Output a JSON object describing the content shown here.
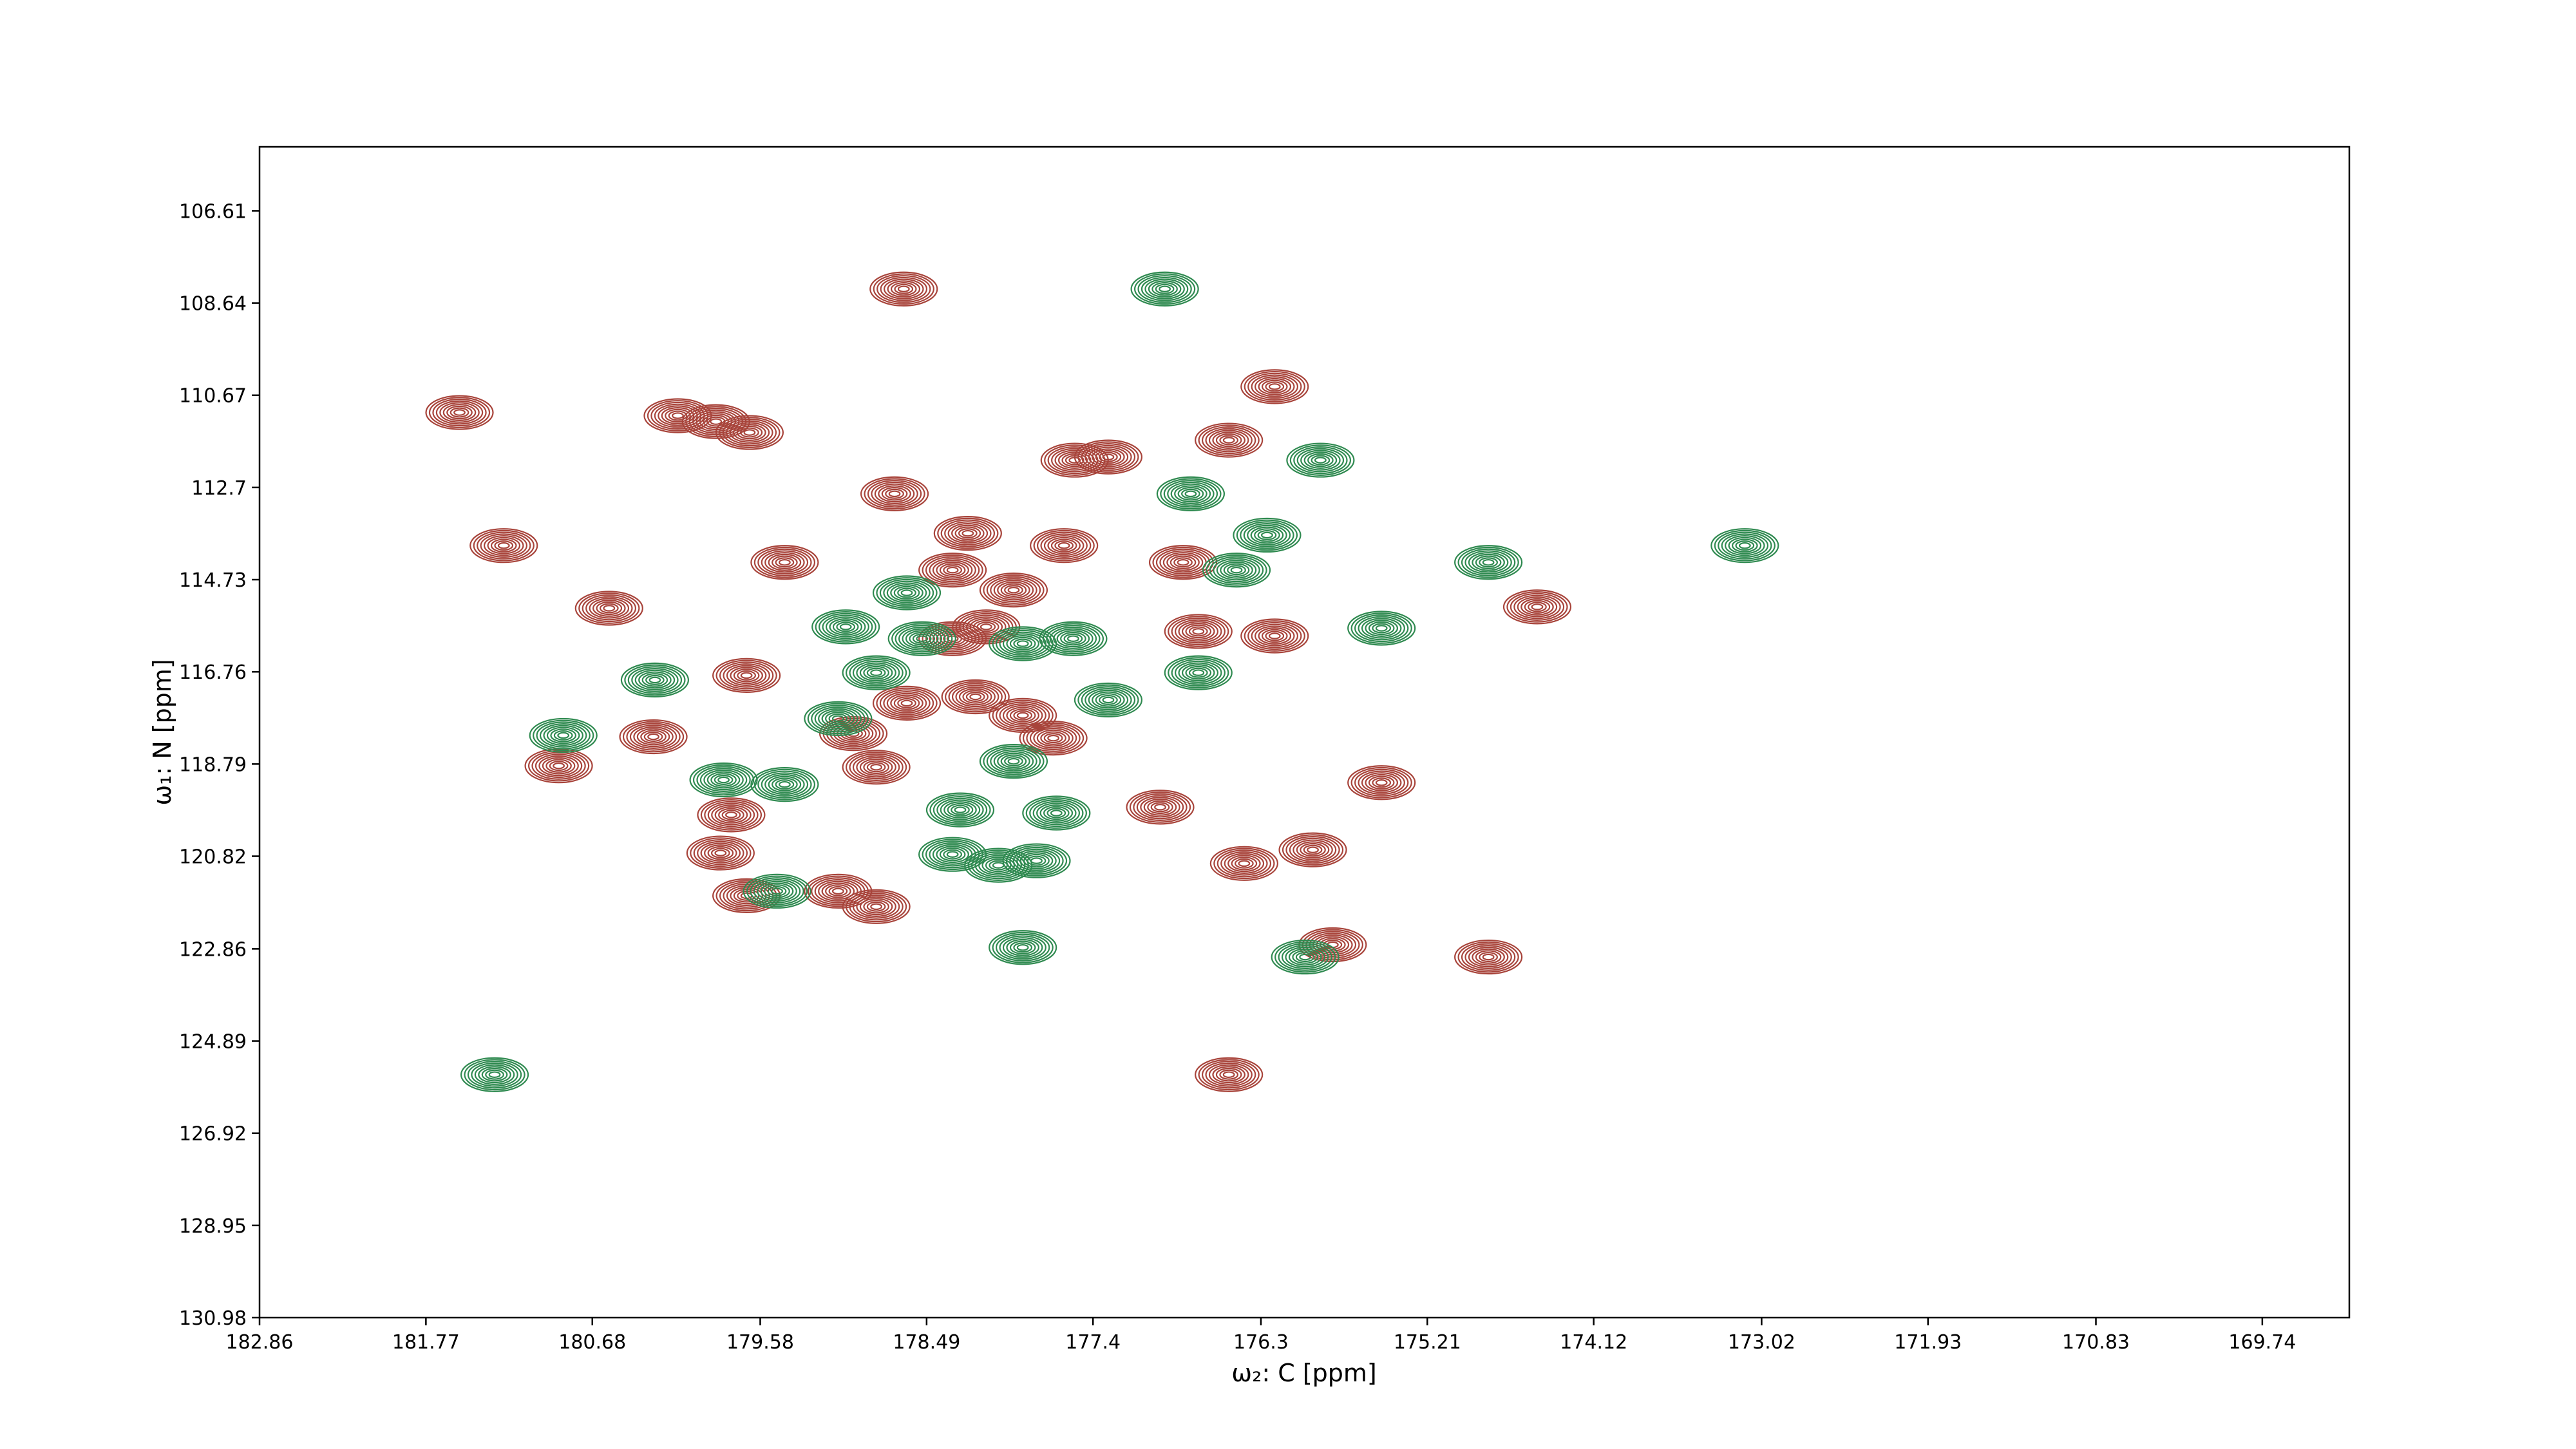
{
  "chart_data": {
    "type": "contour",
    "x_label": "ω₂: C [ppm]",
    "y_label": "ω₁: N [ppm]",
    "xlim": [
      182.86,
      169.17
    ],
    "ylim": [
      130.98,
      105.2
    ],
    "xticks": [
      182.86,
      181.77,
      180.68,
      179.58,
      178.49,
      177.4,
      176.3,
      175.21,
      174.12,
      173.02,
      171.93,
      170.83,
      169.74
    ],
    "yticks": [
      106.61,
      108.64,
      110.67,
      112.7,
      114.73,
      116.76,
      118.79,
      120.82,
      122.86,
      124.89,
      126.92,
      128.95,
      130.98
    ],
    "series": [
      {
        "color": "#a8443b",
        "x": [
          181.55,
          180.12,
          179.87,
          179.65,
          178.64,
          178.7,
          181.26,
          180.57,
          178.22,
          177.59,
          177.52,
          177.3,
          176.21,
          176.51,
          179.42,
          178.32,
          177.92,
          179.67,
          180.28,
          180.9,
          178.82,
          178.97,
          178.62,
          178.17,
          177.86,
          177.66,
          178.1,
          178.32,
          176.71,
          176.21,
          176.96,
          175.51,
          175.96,
          176.41,
          179.77,
          179.84,
          179.67,
          179.07,
          178.82,
          174.49,
          174.81,
          175.83,
          176.51,
          176.81
        ],
        "y": [
          111.05,
          111.12,
          111.25,
          111.49,
          108.33,
          112.84,
          113.98,
          115.36,
          113.71,
          113.98,
          112.1,
          112.03,
          110.48,
          111.66,
          114.35,
          114.52,
          114.96,
          116.84,
          118.19,
          118.83,
          118.86,
          118.12,
          117.45,
          117.31,
          117.72,
          118.22,
          115.77,
          116.03,
          115.87,
          115.97,
          119.74,
          119.2,
          120.68,
          120.98,
          119.91,
          120.75,
          121.69,
          121.59,
          121.93,
          115.33,
          123.04,
          122.77,
          125.63,
          114.35
        ]
      },
      {
        "color": "#2f8a50",
        "x": [
          176.93,
          175.91,
          176.76,
          176.26,
          174.81,
          173.13,
          178.62,
          179.02,
          178.52,
          177.86,
          177.53,
          176.71,
          175.51,
          180.27,
          180.87,
          177.3,
          178.82,
          179.07,
          179.82,
          179.42,
          177.92,
          178.27,
          177.64,
          178.32,
          178.02,
          177.77,
          179.47,
          177.86,
          176.01,
          181.32,
          176.46
        ],
        "y": [
          108.33,
          112.1,
          112.84,
          113.75,
          114.35,
          113.98,
          115.02,
          115.77,
          116.03,
          116.14,
          116.03,
          116.78,
          115.8,
          116.94,
          118.16,
          117.38,
          116.78,
          117.79,
          119.14,
          119.24,
          118.73,
          119.8,
          119.87,
          120.78,
          121.02,
          120.92,
          121.59,
          122.83,
          123.04,
          125.63,
          114.52
        ]
      }
    ]
  }
}
